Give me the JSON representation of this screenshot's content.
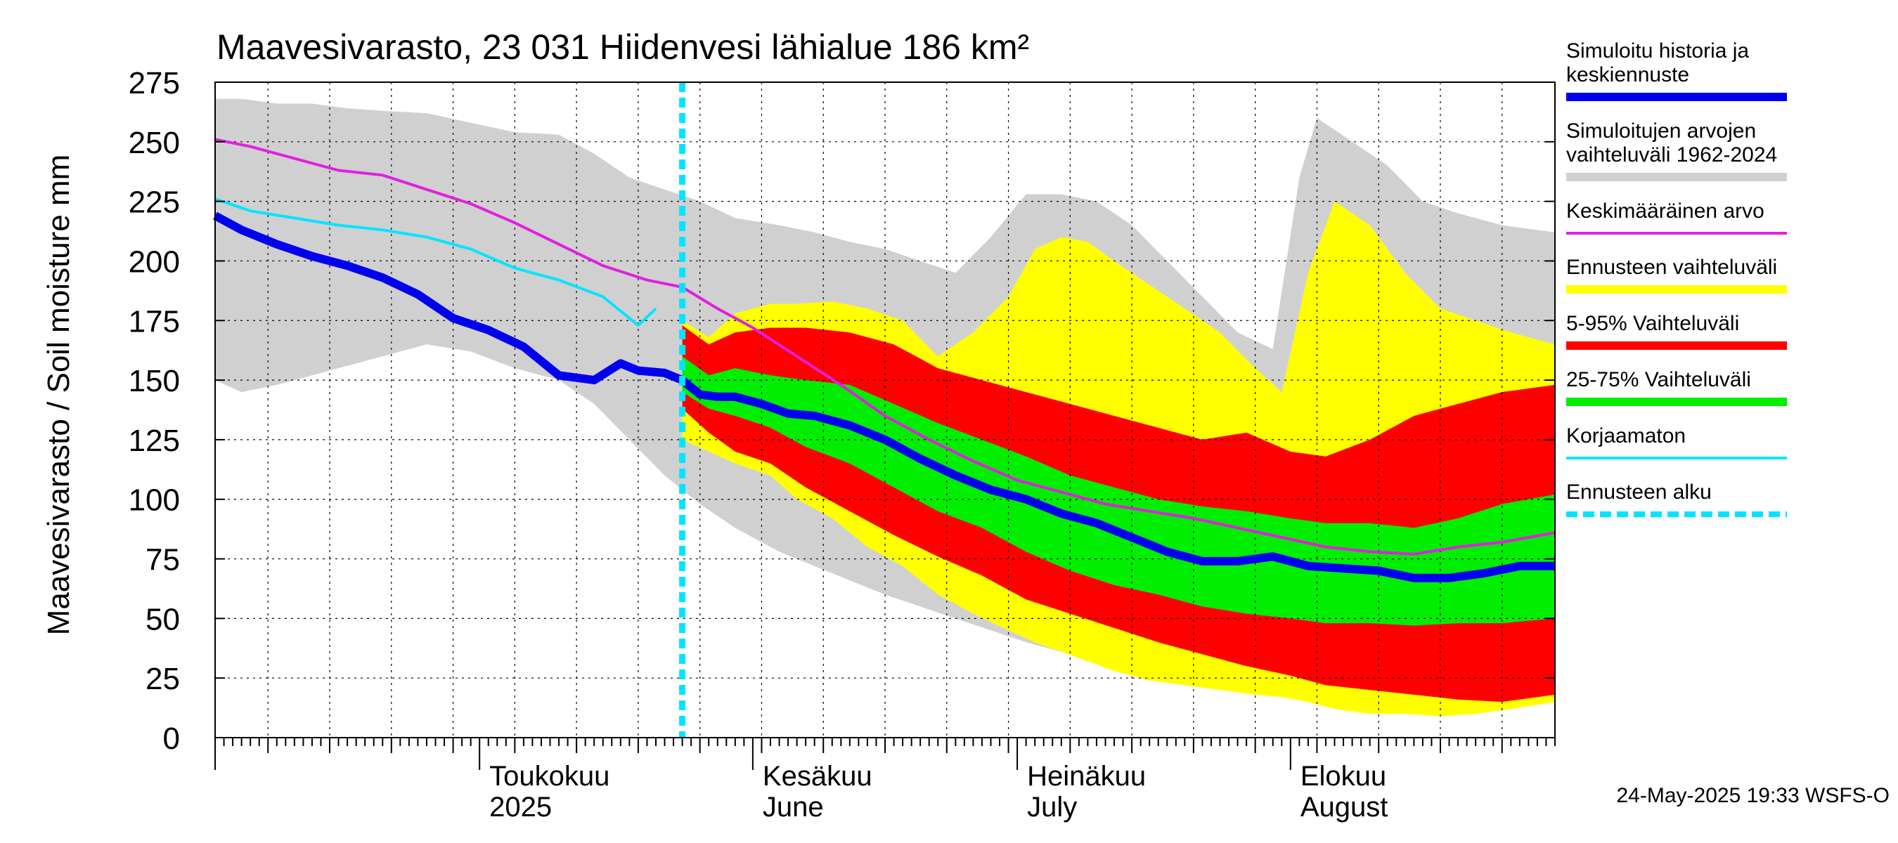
{
  "chart_data": {
    "type": "area",
    "title": "Maavesivarasto, 23 031 Hiidenvesi lähialue 186 km²",
    "ylabel": "Maavesivarasto / Soil moisture   mm",
    "xlabel": "",
    "ylim": [
      0,
      275
    ],
    "yticks": [
      0,
      25,
      50,
      75,
      100,
      125,
      150,
      175,
      200,
      225,
      250,
      275
    ],
    "x_start": "2025-04-01",
    "x_end": "2025-08-31",
    "forecast_start": "2025-05-24",
    "grid": true,
    "legend_position": "right",
    "timestamp": "24-May-2025 19:33 WSFS-O",
    "month_labels": [
      {
        "date": "2025-05-01",
        "line1": "Toukokuu",
        "line2": "2025"
      },
      {
        "date": "2025-06-01",
        "line1": "Kesäkuu",
        "line2": "June"
      },
      {
        "date": "2025-07-01",
        "line1": "Heinäkuu",
        "line2": "July"
      },
      {
        "date": "2025-08-01",
        "line1": "Elokuu",
        "line2": "August"
      }
    ],
    "legend": [
      {
        "label": "Simuloitu historia ja keskiennuste",
        "lines": [
          "Simuloitu historia ja",
          "keskiennuste"
        ],
        "color": "#0000ee",
        "style": "thick"
      },
      {
        "label": "Simuloitujen arvojen vaihteluväli 1962-2024",
        "lines": [
          "Simuloitujen arvojen",
          "vaihteluväli 1962-2024"
        ],
        "color": "#d0d0d0",
        "style": "thick"
      },
      {
        "label": "Keskimääräinen arvo",
        "lines": [
          "Keskimääräinen arvo"
        ],
        "color": "#e020e0",
        "style": "thin"
      },
      {
        "label": "Ennusteen vaihteluväli",
        "lines": [
          "Ennusteen vaihteluväli"
        ],
        "color": "#ffff00",
        "style": "thick"
      },
      {
        "label": "5-95% Vaihteluväli",
        "lines": [
          "5-95% Vaihteluväli"
        ],
        "color": "#ff0000",
        "style": "thick"
      },
      {
        "label": "25-75% Vaihteluväli",
        "lines": [
          "25-75% Vaihteluväli"
        ],
        "color": "#00ee00",
        "style": "thick"
      },
      {
        "label": "Korjaamaton",
        "lines": [
          "Korjaamaton"
        ],
        "color": "#00e5ff",
        "style": "thin"
      },
      {
        "label": "Ennusteen alku",
        "lines": [
          "Ennusteen alku"
        ],
        "color": "#00e5ff",
        "style": "dashed"
      }
    ],
    "series": {
      "hist_range": {
        "dates": [
          "2025-04-01",
          "2025-04-04",
          "2025-04-08",
          "2025-04-12",
          "2025-04-16",
          "2025-04-20",
          "2025-04-25",
          "2025-04-30",
          "2025-05-05",
          "2025-05-10",
          "2025-05-14",
          "2025-05-18",
          "2025-05-22",
          "2025-05-26",
          "2025-05-30",
          "2025-06-04",
          "2025-06-08",
          "2025-06-12",
          "2025-06-16",
          "2025-06-20",
          "2025-06-24",
          "2025-06-28",
          "2025-07-02",
          "2025-07-06",
          "2025-07-10",
          "2025-07-14",
          "2025-07-18",
          "2025-07-22",
          "2025-07-26",
          "2025-07-30",
          "2025-08-02",
          "2025-08-04",
          "2025-08-08",
          "2025-08-12",
          "2025-08-16",
          "2025-08-20",
          "2025-08-25",
          "2025-08-31"
        ],
        "upper": [
          268,
          268,
          266,
          266,
          264,
          263,
          262,
          258,
          254,
          253,
          245,
          235,
          230,
          225,
          218,
          215,
          212,
          208,
          205,
          200,
          195,
          210,
          228,
          228,
          225,
          215,
          200,
          185,
          170,
          163,
          235,
          260,
          250,
          240,
          225,
          220,
          215,
          212
        ],
        "lower": [
          150,
          145,
          148,
          152,
          156,
          160,
          165,
          162,
          155,
          150,
          140,
          125,
          110,
          98,
          88,
          78,
          72,
          66,
          60,
          55,
          50,
          45,
          40,
          36,
          32,
          30,
          27,
          24,
          22,
          20,
          18,
          16,
          15,
          14,
          13,
          12,
          12,
          15
        ]
      },
      "yellow": {
        "dates": [
          "2025-05-24",
          "2025-05-27",
          "2025-05-30",
          "2025-06-03",
          "2025-06-06",
          "2025-06-10",
          "2025-06-14",
          "2025-06-18",
          "2025-06-22",
          "2025-06-26",
          "2025-06-30",
          "2025-07-03",
          "2025-07-06",
          "2025-07-09",
          "2025-07-12",
          "2025-07-16",
          "2025-07-20",
          "2025-07-24",
          "2025-07-28",
          "2025-07-31",
          "2025-08-03",
          "2025-08-06",
          "2025-08-10",
          "2025-08-14",
          "2025-08-18",
          "2025-08-22",
          "2025-08-26",
          "2025-08-31"
        ],
        "upper": [
          175,
          168,
          178,
          182,
          182,
          183,
          180,
          175,
          160,
          170,
          185,
          205,
          210,
          208,
          200,
          190,
          180,
          170,
          155,
          145,
          195,
          225,
          215,
          195,
          180,
          175,
          170,
          165
        ],
        "lower": [
          125,
          120,
          115,
          110,
          100,
          92,
          80,
          72,
          60,
          52,
          45,
          40,
          36,
          32,
          28,
          24,
          22,
          20,
          18,
          17,
          15,
          12,
          10,
          10,
          9,
          10,
          12,
          15
        ]
      },
      "red": {
        "dates": [
          "2025-05-24",
          "2025-05-27",
          "2025-05-30",
          "2025-06-03",
          "2025-06-07",
          "2025-06-12",
          "2025-06-17",
          "2025-06-22",
          "2025-06-27",
          "2025-07-02",
          "2025-07-07",
          "2025-07-12",
          "2025-07-17",
          "2025-07-22",
          "2025-07-27",
          "2025-08-01",
          "2025-08-05",
          "2025-08-10",
          "2025-08-15",
          "2025-08-20",
          "2025-08-25",
          "2025-08-31"
        ],
        "upper": [
          173,
          165,
          170,
          172,
          172,
          170,
          165,
          155,
          150,
          145,
          140,
          135,
          130,
          125,
          128,
          120,
          118,
          125,
          135,
          140,
          145,
          148
        ],
        "lower": [
          138,
          128,
          120,
          115,
          105,
          95,
          85,
          76,
          68,
          58,
          52,
          46,
          40,
          35,
          30,
          26,
          22,
          20,
          18,
          16,
          15,
          18
        ]
      },
      "green": {
        "dates": [
          "2025-05-24",
          "2025-05-27",
          "2025-05-30",
          "2025-06-03",
          "2025-06-07",
          "2025-06-12",
          "2025-06-17",
          "2025-06-22",
          "2025-06-27",
          "2025-07-02",
          "2025-07-07",
          "2025-07-12",
          "2025-07-17",
          "2025-07-22",
          "2025-07-27",
          "2025-08-01",
          "2025-08-05",
          "2025-08-10",
          "2025-08-15",
          "2025-08-20",
          "2025-08-25",
          "2025-08-31"
        ],
        "upper": [
          160,
          152,
          155,
          152,
          150,
          148,
          140,
          132,
          125,
          118,
          110,
          105,
          100,
          97,
          95,
          92,
          90,
          90,
          88,
          92,
          98,
          102
        ],
        "lower": [
          145,
          138,
          135,
          130,
          122,
          115,
          105,
          95,
          88,
          78,
          70,
          64,
          60,
          55,
          52,
          50,
          48,
          48,
          47,
          48,
          48,
          50
        ]
      },
      "mean": {
        "dates": [
          "2025-04-01",
          "2025-04-05",
          "2025-04-10",
          "2025-04-15",
          "2025-04-20",
          "2025-04-25",
          "2025-04-30",
          "2025-05-05",
          "2025-05-10",
          "2025-05-15",
          "2025-05-20",
          "2025-05-24",
          "2025-05-28",
          "2025-06-01",
          "2025-06-06",
          "2025-06-11",
          "2025-06-16",
          "2025-06-21",
          "2025-06-26",
          "2025-07-01",
          "2025-07-06",
          "2025-07-11",
          "2025-07-16",
          "2025-07-21",
          "2025-07-26",
          "2025-07-31",
          "2025-08-05",
          "2025-08-10",
          "2025-08-15",
          "2025-08-20",
          "2025-08-25",
          "2025-08-31"
        ],
        "values": [
          251,
          248,
          243,
          238,
          236,
          230,
          224,
          216,
          207,
          198,
          192,
          189,
          180,
          172,
          160,
          148,
          135,
          125,
          116,
          108,
          103,
          98,
          95,
          92,
          88,
          84,
          80,
          78,
          77,
          80,
          82,
          86
        ]
      },
      "uncorrected": {
        "dates": [
          "2025-04-01",
          "2025-04-05",
          "2025-04-10",
          "2025-04-15",
          "2025-04-20",
          "2025-04-25",
          "2025-04-30",
          "2025-05-05",
          "2025-05-10",
          "2025-05-15",
          "2025-05-19",
          "2025-05-21"
        ],
        "values": [
          226,
          221,
          218,
          215,
          213,
          210,
          205,
          197,
          192,
          185,
          173,
          180
        ]
      },
      "main": {
        "dates": [
          "2025-04-01",
          "2025-04-04",
          "2025-04-08",
          "2025-04-12",
          "2025-04-16",
          "2025-04-20",
          "2025-04-24",
          "2025-04-28",
          "2025-05-02",
          "2025-05-06",
          "2025-05-10",
          "2025-05-14",
          "2025-05-17",
          "2025-05-19",
          "2025-05-22",
          "2025-05-24",
          "2025-05-26",
          "2025-05-28",
          "2025-05-30",
          "2025-06-02",
          "2025-06-05",
          "2025-06-08",
          "2025-06-12",
          "2025-06-16",
          "2025-06-20",
          "2025-06-24",
          "2025-06-28",
          "2025-07-02",
          "2025-07-06",
          "2025-07-10",
          "2025-07-14",
          "2025-07-18",
          "2025-07-22",
          "2025-07-26",
          "2025-07-30",
          "2025-08-03",
          "2025-08-07",
          "2025-08-11",
          "2025-08-15",
          "2025-08-19",
          "2025-08-23",
          "2025-08-27",
          "2025-08-31"
        ],
        "values": [
          219,
          213,
          207,
          202,
          198,
          193,
          186,
          176,
          171,
          164,
          152,
          150,
          157,
          154,
          153,
          150,
          144,
          143,
          143,
          140,
          136,
          135,
          131,
          125,
          117,
          110,
          104,
          100,
          94,
          90,
          84,
          78,
          74,
          74,
          76,
          72,
          71,
          70,
          67,
          67,
          69,
          72,
          72
        ]
      }
    }
  }
}
